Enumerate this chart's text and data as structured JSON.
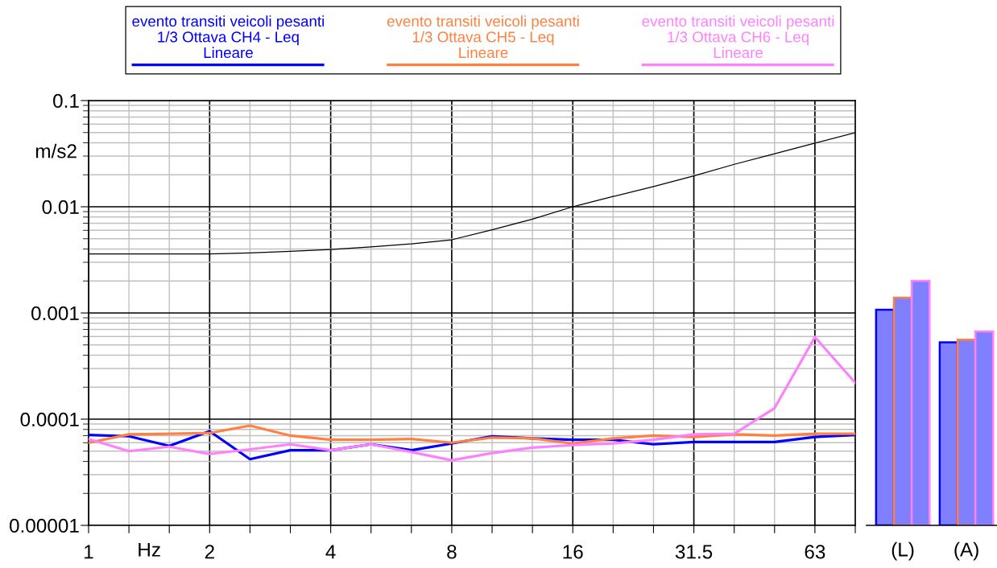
{
  "chart_data": [
    {
      "type": "line",
      "categories": [
        "1",
        null,
        null,
        "2",
        null,
        null,
        "4",
        null,
        null,
        "8",
        null,
        null,
        "16",
        null,
        null,
        "31.5",
        null,
        null,
        "63",
        null
      ],
      "series": [
        {
          "name": "evento transiti veicoli pesanti\n1/3 Ottava CH4 - Leq\nLineare",
          "color": "#0000ff",
          "values": [
            7.1e-05,
            6.9e-05,
            5.6e-05,
            7.7e-05,
            4.2e-05,
            5.1e-05,
            5.1e-05,
            5.8e-05,
            5.1e-05,
            5.9e-05,
            6.9e-05,
            6.6e-05,
            6.4e-05,
            6.4e-05,
            5.8e-05,
            6.1e-05,
            6.1e-05,
            6.1e-05,
            6.8e-05,
            7.1e-05
          ]
        },
        {
          "name": "evento transiti veicoli pesanti\n1/3 Ottava CH5 - Leq\nLineare",
          "color": "#ff8040",
          "values": [
            6e-05,
            7.2e-05,
            7.3e-05,
            7.4e-05,
            8.7e-05,
            7e-05,
            6.4e-05,
            6.4e-05,
            6.5e-05,
            6e-05,
            6.7e-05,
            6.6e-05,
            5.9e-05,
            6.6e-05,
            7e-05,
            6.8e-05,
            7.2e-05,
            7e-05,
            7.3e-05,
            7.3e-05
          ]
        },
        {
          "name": "evento transiti veicoli pesanti\n1/3 Ottava CH6 - Leq\nLineare",
          "color": "#ff80ff",
          "values": [
            6.5e-05,
            5e-05,
            5.5e-05,
            4.7e-05,
            5.2e-05,
            5.8e-05,
            5.1e-05,
            5.8e-05,
            4.9e-05,
            4.1e-05,
            4.8e-05,
            5.4e-05,
            5.7e-05,
            5.9e-05,
            6.4e-05,
            7.2e-05,
            7.3e-05,
            0.000127,
            0.000593,
            0.00022
          ]
        },
        {
          "color": "#000000",
          "values": [
            0.0036,
            0.0036,
            0.0036,
            0.0036,
            0.00368,
            0.0038,
            0.00396,
            0.00419,
            0.00447,
            0.00489,
            0.00607,
            0.00764,
            0.01,
            0.0125,
            0.0155,
            0.0195,
            0.0251,
            0.0315,
            0.0397,
            0.0498
          ]
        }
      ],
      "xlabel": "Hz",
      "ylabel": "m/s2",
      "log": true,
      "ylim": [
        1e-05,
        0.1
      ],
      "yticks": [
        {
          "value": 1e-05,
          "label": "0.00001"
        },
        0.0001,
        0.001,
        0.01,
        0.1
      ],
      "grid": true,
      "legend": "top"
    },
    {
      "type": "bar",
      "categories": [
        "(L)",
        "(A)"
      ],
      "series": [
        {
          "color": "#0000ff",
          "values": [
            0.00107,
            0.00053
          ]
        },
        {
          "color": "#ff8040",
          "values": [
            0.00139,
            0.00056
          ]
        },
        {
          "color": "#ff80ff",
          "values": [
            0.00201,
            0.00067
          ]
        }
      ],
      "log": true,
      "ylim": [
        1e-05,
        0.1
      ],
      "tick_labels": "x"
    }
  ]
}
